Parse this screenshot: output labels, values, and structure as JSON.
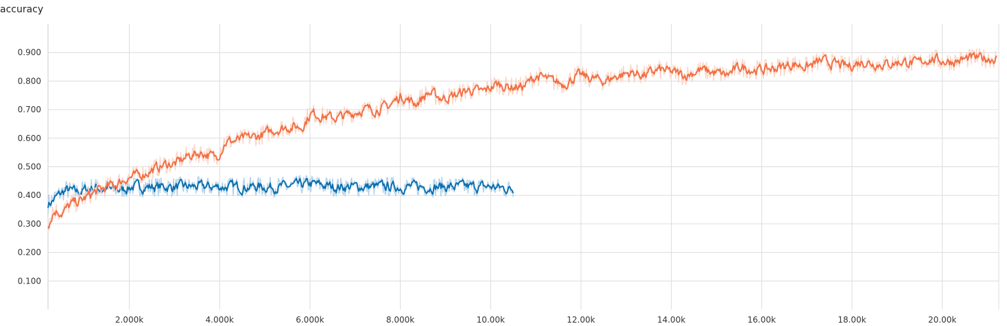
{
  "chart_data": {
    "type": "line",
    "title": "accuracy",
    "xlabel": "",
    "ylabel": "",
    "xlim": [
      200,
      21250
    ],
    "ylim": [
      0.0,
      1.0
    ],
    "grid": true,
    "x_ticks": [
      2000,
      4000,
      6000,
      8000,
      10000,
      12000,
      14000,
      16000,
      18000,
      20000
    ],
    "x_tick_labels": [
      "2.000k",
      "4.000k",
      "6.000k",
      "8.000k",
      "10.00k",
      "12.00k",
      "14.00k",
      "16.00k",
      "18.00k",
      "20.00k"
    ],
    "y_ticks": [
      0.1,
      0.2,
      0.3,
      0.4,
      0.5,
      0.6,
      0.7,
      0.8,
      0.9
    ],
    "y_tick_labels": [
      "0.100",
      "0.200",
      "0.300",
      "0.400",
      "0.500",
      "0.600",
      "0.700",
      "0.800",
      "0.900"
    ],
    "series": [
      {
        "color": "#0b6fb0",
        "raw_color": "#a6cce8",
        "x": [
          200,
          400,
          600,
          800,
          1000,
          1200,
          1400,
          1600,
          1800,
          2000,
          2500,
          3000,
          3500,
          4000,
          4500,
          5000,
          5500,
          6000,
          6500,
          7000,
          7500,
          8000,
          8500,
          9000,
          9500,
          10000,
          10500
        ],
        "y": [
          0.37,
          0.4,
          0.42,
          0.41,
          0.42,
          0.43,
          0.42,
          0.42,
          0.42,
          0.43,
          0.43,
          0.43,
          0.43,
          0.43,
          0.43,
          0.43,
          0.43,
          0.44,
          0.43,
          0.43,
          0.43,
          0.43,
          0.43,
          0.43,
          0.43,
          0.43,
          0.42
        ]
      },
      {
        "color": "#f26f42",
        "raw_color": "#fbd0c0",
        "x": [
          200,
          300,
          500,
          700,
          900,
          1000,
          1200,
          1500,
          1700,
          1900,
          2200,
          2500,
          2800,
          3000,
          3300,
          3600,
          3900,
          4100,
          4300,
          4600,
          4900,
          5200,
          5500,
          5800,
          6000,
          6200,
          6500,
          6800,
          7100,
          7400,
          7700,
          8000,
          8300,
          8600,
          8900,
          9200,
          9500,
          9800,
          10100,
          10400,
          10700,
          11000,
          11300,
          11600,
          11900,
          12200,
          12500,
          12800,
          13100,
          13400,
          13700,
          14000,
          14300,
          14600,
          14900,
          15200,
          15500,
          15800,
          16100,
          16400,
          16700,
          17000,
          17300,
          17600,
          17900,
          18200,
          18500,
          18800,
          19100,
          19400,
          19700,
          20000,
          20300,
          20600,
          20900,
          21200
        ],
        "y": [
          0.3,
          0.35,
          0.34,
          0.37,
          0.38,
          0.39,
          0.41,
          0.43,
          0.44,
          0.46,
          0.47,
          0.49,
          0.51,
          0.51,
          0.54,
          0.55,
          0.53,
          0.59,
          0.59,
          0.6,
          0.61,
          0.63,
          0.64,
          0.64,
          0.69,
          0.68,
          0.67,
          0.68,
          0.7,
          0.7,
          0.71,
          0.75,
          0.72,
          0.76,
          0.74,
          0.75,
          0.77,
          0.76,
          0.79,
          0.78,
          0.78,
          0.82,
          0.8,
          0.79,
          0.82,
          0.81,
          0.8,
          0.82,
          0.83,
          0.82,
          0.84,
          0.83,
          0.82,
          0.84,
          0.83,
          0.82,
          0.85,
          0.84,
          0.84,
          0.85,
          0.86,
          0.85,
          0.87,
          0.86,
          0.85,
          0.87,
          0.86,
          0.86,
          0.87,
          0.86,
          0.88,
          0.87,
          0.87,
          0.88,
          0.88,
          0.88
        ]
      }
    ]
  }
}
